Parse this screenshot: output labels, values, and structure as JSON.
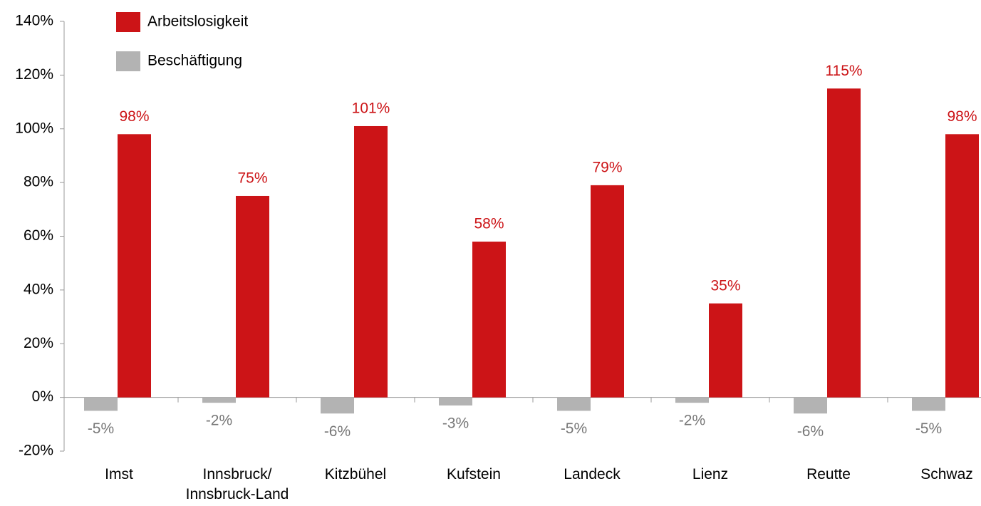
{
  "chart_data": {
    "type": "bar",
    "categories": [
      "Imst",
      "Innsbruck/\nInnsbruck-Land",
      "Kitzbühel",
      "Kufstein",
      "Landeck",
      "Lienz",
      "Reutte",
      "Schwaz"
    ],
    "series": [
      {
        "name": "Arbeitslosigkeit",
        "color": "#cc1417",
        "values": [
          98,
          75,
          101,
          58,
          79,
          35,
          115,
          98
        ],
        "value_labels": [
          "98%",
          "75%",
          "101%",
          "58%",
          "79%",
          "35%",
          "115%",
          "98%"
        ]
      },
      {
        "name": "Beschäftigung",
        "color": "#b3b3b3",
        "values": [
          -5,
          -2,
          -6,
          -3,
          -5,
          -2,
          -6,
          -5
        ],
        "value_labels": [
          "-5%",
          "-2%",
          "-6%",
          "-3%",
          "-5%",
          "-2%",
          "-6%",
          "-5%"
        ]
      }
    ],
    "ylim": [
      -20,
      140
    ],
    "yticks": [
      {
        "value": -20,
        "label": "-20%"
      },
      {
        "value": 0,
        "label": "0%"
      },
      {
        "value": 20,
        "label": "20%"
      },
      {
        "value": 40,
        "label": "40%"
      },
      {
        "value": 60,
        "label": "60%"
      },
      {
        "value": 80,
        "label": "80%"
      },
      {
        "value": 100,
        "label": "100%"
      },
      {
        "value": 120,
        "label": "120%"
      },
      {
        "value": 140,
        "label": "140%"
      }
    ],
    "legend": "top-left"
  }
}
